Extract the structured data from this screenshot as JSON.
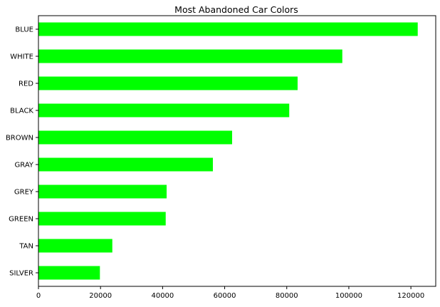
{
  "chart_data": {
    "type": "bar",
    "orientation": "horizontal",
    "title": "Most Abandoned Car Colors",
    "xlabel": "",
    "ylabel": "",
    "categories": [
      "BLUE",
      "WHITE",
      "RED",
      "BLACK",
      "BROWN",
      "GRAY",
      "GREY",
      "GREEN",
      "TAN",
      "SILVER"
    ],
    "values": [
      122200,
      97900,
      83500,
      80800,
      62400,
      56200,
      41300,
      41000,
      23800,
      19800
    ],
    "xlim": [
      0,
      128000
    ],
    "xticks": [
      0,
      20000,
      40000,
      60000,
      80000,
      100000,
      120000
    ],
    "bar_color": "#00ff00",
    "grid": false,
    "legend": false
  }
}
